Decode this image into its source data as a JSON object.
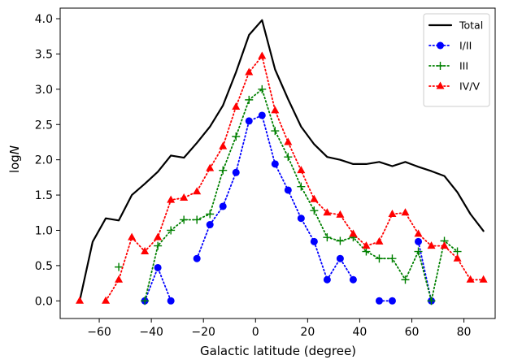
{
  "chart_data": {
    "type": "line",
    "title": "",
    "xlabel": "Galactic latitude (degree)",
    "ylabel_base": "log",
    "ylabel_var": "N",
    "xlim": [
      -75,
      92
    ],
    "ylim": [
      -0.25,
      4.15
    ],
    "xticks": [
      -60,
      -40,
      -20,
      0,
      20,
      40,
      60,
      80
    ],
    "yticks": [
      0.0,
      0.5,
      1.0,
      1.5,
      2.0,
      2.5,
      3.0,
      3.5,
      4.0
    ],
    "xtick_labels": [
      "−60",
      "−40",
      "−20",
      "0",
      "20",
      "40",
      "60",
      "80"
    ],
    "ytick_labels": [
      "0.0",
      "0.5",
      "1.0",
      "1.5",
      "2.0",
      "2.5",
      "3.0",
      "3.5",
      "4.0"
    ],
    "legend_position": "top-right",
    "series": [
      {
        "name": "Total",
        "color": "#000000",
        "style": "solid",
        "marker": "none",
        "points": [
          [
            -67.5,
            0.0
          ],
          [
            -62.5,
            0.84
          ],
          [
            -57.5,
            1.17
          ],
          [
            -52.5,
            1.14
          ],
          [
            -47.5,
            1.5
          ],
          [
            -42.5,
            1.66
          ],
          [
            -37.5,
            1.83
          ],
          [
            -32.5,
            2.06
          ],
          [
            -27.5,
            2.03
          ],
          [
            -22.5,
            2.24
          ],
          [
            -17.5,
            2.47
          ],
          [
            -12.5,
            2.77
          ],
          [
            -7.5,
            3.24
          ],
          [
            -2.5,
            3.77
          ],
          [
            2.5,
            3.98
          ],
          [
            7.5,
            3.28
          ],
          [
            12.5,
            2.86
          ],
          [
            17.5,
            2.47
          ],
          [
            22.5,
            2.22
          ],
          [
            27.5,
            2.04
          ],
          [
            32.5,
            2.0
          ],
          [
            37.5,
            1.94
          ],
          [
            42.5,
            1.94
          ],
          [
            47.5,
            1.97
          ],
          [
            52.5,
            1.91
          ],
          [
            57.5,
            1.97
          ],
          [
            62.5,
            1.9
          ],
          [
            67.5,
            1.84
          ],
          [
            72.5,
            1.77
          ],
          [
            77.5,
            1.54
          ],
          [
            82.5,
            1.23
          ],
          [
            87.5,
            0.99
          ]
        ]
      },
      {
        "name": "I/II",
        "color": "#0000ff",
        "style": "dotted",
        "marker": "circle",
        "segments": [
          [
            [
              -42.5,
              0.0
            ],
            [
              -37.5,
              0.47
            ],
            [
              -32.5,
              0.0
            ]
          ],
          [
            [
              -22.5,
              0.6
            ],
            [
              -17.5,
              1.08
            ],
            [
              -12.5,
              1.34
            ],
            [
              -7.5,
              1.82
            ],
            [
              -2.5,
              2.55
            ],
            [
              2.5,
              2.63
            ],
            [
              7.5,
              1.94
            ],
            [
              12.5,
              1.57
            ],
            [
              17.5,
              1.17
            ],
            [
              22.5,
              0.84
            ],
            [
              27.5,
              0.3
            ],
            [
              32.5,
              0.6
            ],
            [
              37.5,
              0.3
            ]
          ],
          [
            [
              47.5,
              0.0
            ],
            [
              52.5,
              0.0
            ]
          ],
          [
            [
              62.5,
              0.84
            ],
            [
              67.5,
              0.0
            ]
          ]
        ]
      },
      {
        "name": "III",
        "color": "#008000",
        "style": "dotted",
        "marker": "plus",
        "segments": [
          [
            [
              -52.5,
              0.48
            ]
          ],
          [
            [
              -42.5,
              0.0
            ],
            [
              -37.5,
              0.78
            ],
            [
              -32.5,
              1.0
            ],
            [
              -27.5,
              1.15
            ],
            [
              -22.5,
              1.15
            ],
            [
              -17.5,
              1.23
            ],
            [
              -12.5,
              1.85
            ],
            [
              -7.5,
              2.33
            ],
            [
              -2.5,
              2.85
            ],
            [
              2.5,
              3.0
            ],
            [
              7.5,
              2.41
            ],
            [
              12.5,
              2.04
            ],
            [
              17.5,
              1.62
            ],
            [
              22.5,
              1.28
            ],
            [
              27.5,
              0.9
            ],
            [
              32.5,
              0.85
            ],
            [
              37.5,
              0.9
            ],
            [
              42.5,
              0.7
            ],
            [
              47.5,
              0.6
            ],
            [
              52.5,
              0.6
            ],
            [
              57.5,
              0.3
            ],
            [
              62.5,
              0.7
            ],
            [
              67.5,
              0.0
            ],
            [
              72.5,
              0.85
            ],
            [
              77.5,
              0.7
            ]
          ]
        ]
      },
      {
        "name": "IV/V",
        "color": "#ff0000",
        "style": "dotted",
        "marker": "triangle",
        "segments": [
          [
            [
              -67.5,
              0.0
            ]
          ],
          [
            [
              -57.5,
              0.0
            ],
            [
              -52.5,
              0.3
            ],
            [
              -47.5,
              0.9
            ],
            [
              -42.5,
              0.7
            ],
            [
              -37.5,
              0.9
            ],
            [
              -32.5,
              1.43
            ],
            [
              -27.5,
              1.46
            ],
            [
              -22.5,
              1.55
            ],
            [
              -17.5,
              1.88
            ],
            [
              -12.5,
              2.19
            ],
            [
              -7.5,
              2.75
            ],
            [
              -2.5,
              3.24
            ],
            [
              2.5,
              3.47
            ],
            [
              7.5,
              2.7
            ],
            [
              12.5,
              2.25
            ],
            [
              17.5,
              1.85
            ],
            [
              22.5,
              1.44
            ],
            [
              27.5,
              1.25
            ],
            [
              32.5,
              1.22
            ],
            [
              37.5,
              0.95
            ],
            [
              42.5,
              0.78
            ],
            [
              47.5,
              0.84
            ],
            [
              52.5,
              1.23
            ],
            [
              57.5,
              1.25
            ],
            [
              62.5,
              0.95
            ],
            [
              67.5,
              0.78
            ],
            [
              72.5,
              0.78
            ],
            [
              77.5,
              0.6
            ],
            [
              82.5,
              0.3
            ],
            [
              87.5,
              0.3
            ]
          ]
        ]
      }
    ]
  }
}
